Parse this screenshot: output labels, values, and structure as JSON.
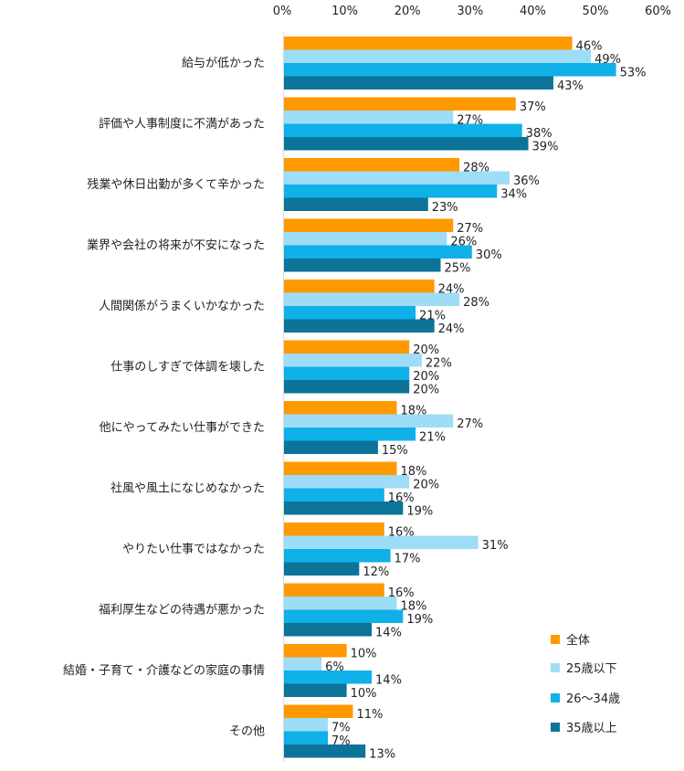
{
  "chart_data": {
    "type": "bar",
    "orientation": "horizontal",
    "title": "",
    "xlabel": "",
    "ylabel": "",
    "xlim": [
      0,
      60
    ],
    "x_ticks": [
      "0%",
      "10%",
      "20%",
      "30%",
      "40%",
      "50%",
      "60%"
    ],
    "x_tick_values": [
      0,
      10,
      20,
      30,
      40,
      50,
      60
    ],
    "x_axis_position": "top",
    "grid": false,
    "legend_position": "bottom-right",
    "value_suffix": "%",
    "categories": [
      "給与が低かった",
      "評価や人事制度に不満があった",
      "残業や休日出勤が多くて辛かった",
      "業界や会社の将来が不安になった",
      "人間関係がうまくいかなかった",
      "仕事のしすぎで体調を壊した",
      "他にやってみたい仕事ができた",
      "社風や風土になじめなかった",
      "やりたい仕事ではなかった",
      "福利厚生などの待遇が悪かった",
      "結婚・子育て・介護などの家庭の事情",
      "その他"
    ],
    "series": [
      {
        "name": "全体",
        "color": "#FF9900",
        "values": [
          46,
          37,
          28,
          27,
          24,
          20,
          18,
          18,
          16,
          16,
          10,
          11
        ]
      },
      {
        "name": "25歳以下",
        "color": "#9EDDF7",
        "values": [
          49,
          27,
          36,
          26,
          28,
          22,
          27,
          20,
          31,
          18,
          6,
          7
        ]
      },
      {
        "name": "26～34歳",
        "color": "#10B0E8",
        "values": [
          53,
          38,
          34,
          30,
          21,
          20,
          21,
          16,
          17,
          19,
          14,
          7
        ]
      },
      {
        "name": "35歳以上",
        "color": "#0C7399",
        "values": [
          43,
          39,
          23,
          25,
          24,
          20,
          15,
          19,
          12,
          14,
          10,
          13
        ]
      }
    ]
  }
}
